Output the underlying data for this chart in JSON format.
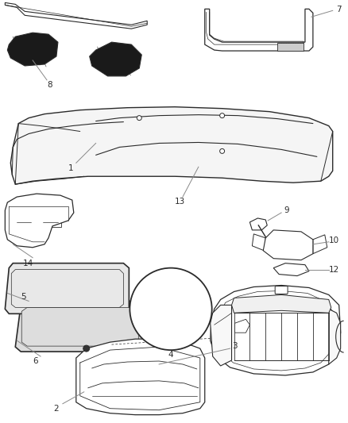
{
  "bg_color": "#ffffff",
  "fig_width": 4.38,
  "fig_height": 5.33,
  "dpi": 100,
  "line_color": "#2a2a2a",
  "label_fontsize": 7.5,
  "label_color": "#2a2a2a",
  "leader_color": "#888888"
}
